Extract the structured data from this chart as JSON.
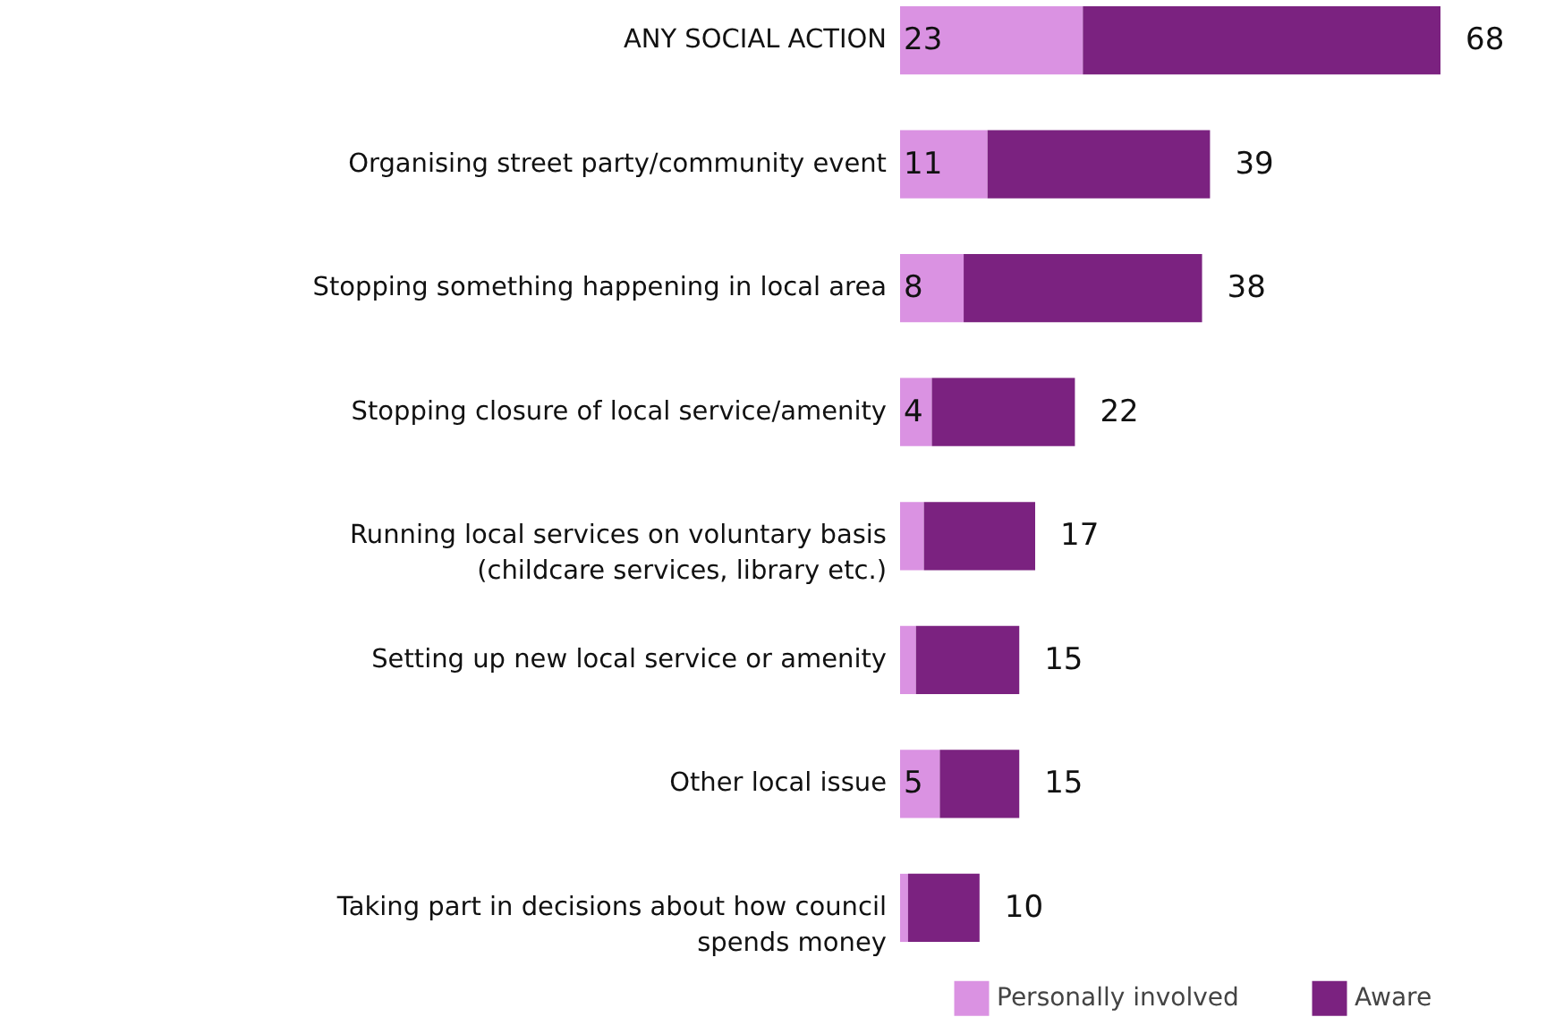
{
  "chart_data": {
    "type": "bar",
    "orientation": "horizontal",
    "stacked": true,
    "legend": "bottom right",
    "categories": [
      "ANY SOCIAL ACTION",
      "Organising street party/community event",
      "Stopping something happening in local area",
      "Stopping closure of local service/amenity",
      "Running local services on voluntary basis\n(childcare services, library etc.)",
      "Setting up new local service or amenity",
      "Other local issue",
      "Taking part in decisions about how council\nspends money"
    ],
    "series": [
      {
        "name": "Personally involved",
        "color": "#da92e2",
        "values": [
          23,
          11,
          8,
          4,
          3,
          2,
          5,
          1
        ],
        "value_labels": [
          "23",
          "11",
          "8",
          "4",
          null,
          null,
          "5",
          null
        ]
      },
      {
        "name": "Aware",
        "color": "#7b2280",
        "values": [
          45,
          28,
          30,
          18,
          14,
          13,
          10,
          9
        ]
      }
    ],
    "totals": [
      "68",
      "39",
      "38",
      "22",
      "17",
      "15",
      "15",
      "10"
    ]
  }
}
